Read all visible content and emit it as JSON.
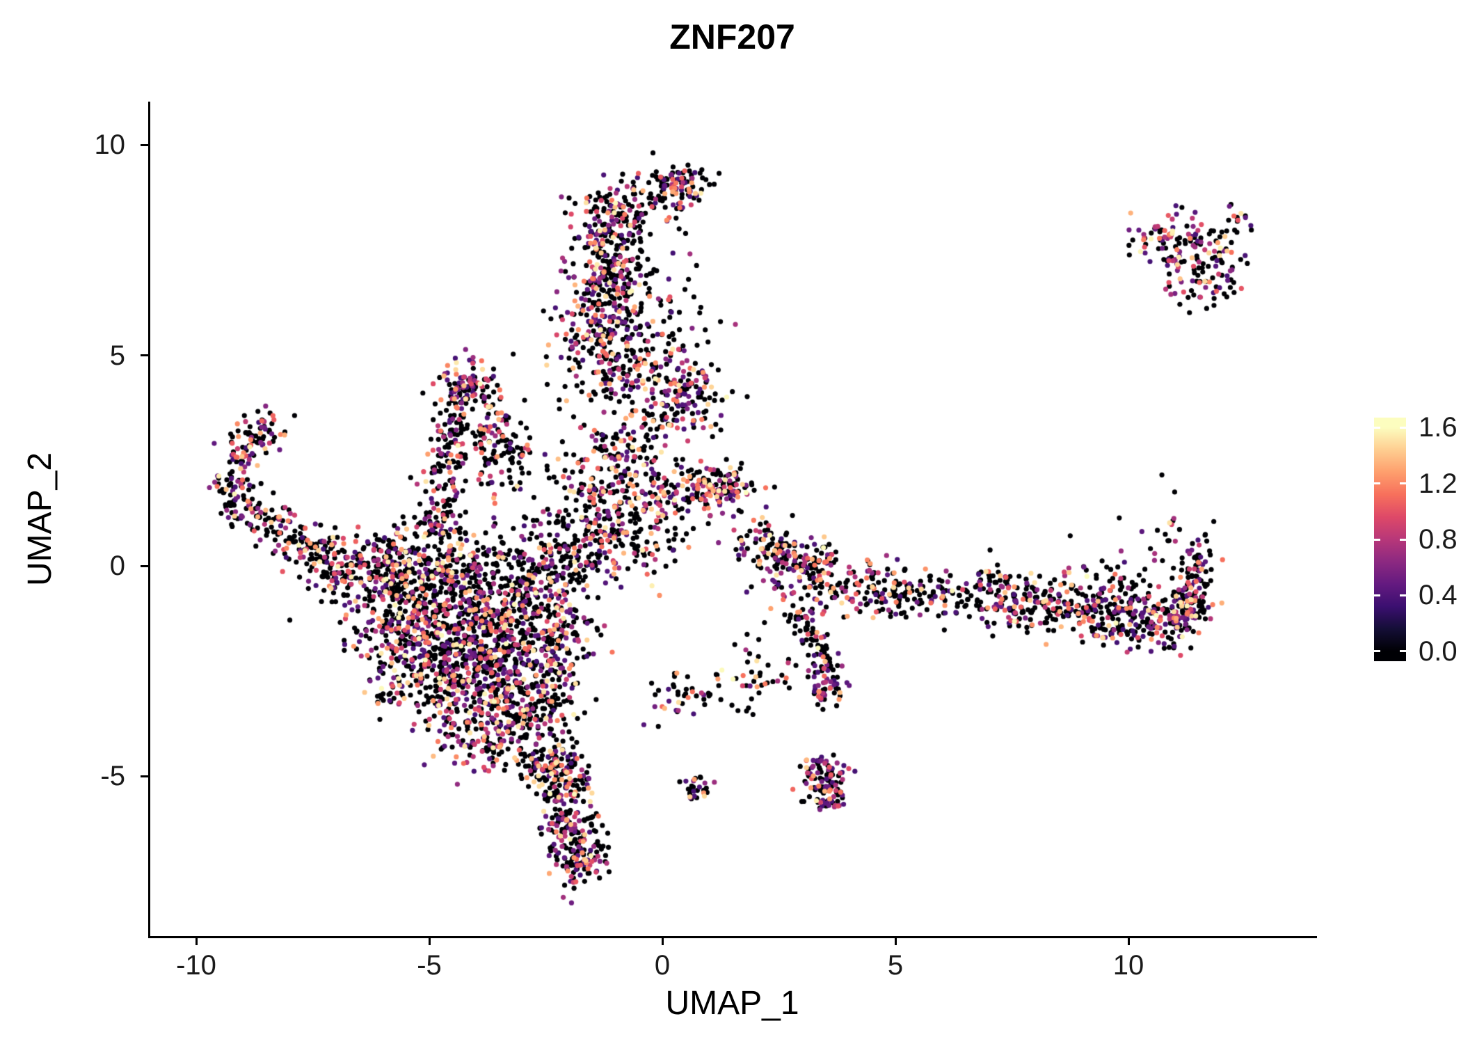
{
  "title": "ZNF207",
  "chart_data": {
    "type": "scatter",
    "title": "ZNF207",
    "xlabel": "UMAP_1",
    "ylabel": "UMAP_2",
    "xlim": [
      -11,
      14
    ],
    "ylim": [
      -8.8,
      11
    ],
    "x_ticks": [
      -10,
      -5,
      0,
      5,
      10
    ],
    "x_tick_labels": [
      "-10",
      "-5",
      "0",
      "5",
      "10"
    ],
    "y_ticks": [
      10,
      5,
      0,
      -5
    ],
    "y_tick_labels": [
      "10",
      "5",
      "0",
      "-5"
    ],
    "grid": false,
    "background": "#ffffff",
    "axis_color": "#000000",
    "point_radius_px": 3.6,
    "legend": {
      "position": "right",
      "orientation": "vertical",
      "min": 0.0,
      "max": 1.6,
      "tick_values": [
        1.6,
        1.2,
        0.8,
        0.4,
        0.0
      ],
      "tick_labels": [
        "1.6",
        "1.2",
        "0.8",
        "0.4",
        "0.0"
      ],
      "palette_name": "magma",
      "palette": [
        "#000004",
        "#140e36",
        "#3b0f70",
        "#641a80",
        "#8c2981",
        "#b73779",
        "#de4968",
        "#f7705c",
        "#fe9f6d",
        "#fece91",
        "#fcfdbf"
      ]
    },
    "value_model": {
      "comment": "most cells have zero expression (black); nonzero values mostly 0.5-1.0 (purple/magenta), some 1.1-1.4 (orange), rare ~1.6 (pale yellow)",
      "frac_zero_default": 0.6,
      "nonzero_min": 0.35,
      "nonzero_max": 1.6,
      "gamma": 1.6
    },
    "clusters": [
      {
        "kind": "blob",
        "x": 0.45,
        "y": 9.05,
        "sx": 0.3,
        "sy": 0.25,
        "n": 70,
        "p0": 0.55
      },
      {
        "kind": "blob",
        "x": -0.15,
        "y": 8.9,
        "sx": 0.35,
        "sy": 0.3,
        "n": 50
      },
      {
        "kind": "blob",
        "x": -0.95,
        "y": 8.35,
        "sx": 0.45,
        "sy": 0.35,
        "n": 120,
        "p0": 0.5
      },
      {
        "kind": "strand",
        "x1": -1.1,
        "y1": 8.0,
        "x2": -1.35,
        "y2": 6.4,
        "w": 0.35,
        "n": 150
      },
      {
        "kind": "blob",
        "x": -1.3,
        "y": 5.7,
        "sx": 0.5,
        "sy": 0.55,
        "n": 200,
        "p0": 0.5
      },
      {
        "kind": "blob",
        "x": -0.85,
        "y": 4.55,
        "sx": 0.45,
        "sy": 0.4,
        "n": 90
      },
      {
        "kind": "blob",
        "x": -0.4,
        "y": 6.6,
        "sx": 0.5,
        "sy": 0.9,
        "n": 70,
        "p0": 0.7
      },
      {
        "kind": "blob",
        "x": 0.1,
        "y": 5.3,
        "sx": 0.4,
        "sy": 0.4,
        "n": 22,
        "p0": 0.75
      },
      {
        "kind": "blob",
        "x": 0.9,
        "y": 5.8,
        "sx": 0.3,
        "sy": 0.4,
        "n": 8,
        "p0": 0.7
      },
      {
        "kind": "blob",
        "x": 11.1,
        "y": 7.6,
        "sx": 0.45,
        "sy": 0.4,
        "n": 70,
        "p0": 0.5
      },
      {
        "kind": "blob",
        "x": 11.6,
        "y": 6.9,
        "sx": 0.5,
        "sy": 0.4,
        "n": 70,
        "p0": 0.55
      },
      {
        "kind": "blob",
        "x": 10.7,
        "y": 7.9,
        "sx": 0.3,
        "sy": 0.25,
        "n": 30,
        "p0": 0.5
      },
      {
        "kind": "blob",
        "x": 12.3,
        "y": 8.35,
        "sx": 0.15,
        "sy": 0.12,
        "n": 10,
        "p0": 0.5
      },
      {
        "kind": "blob",
        "x": 12.0,
        "y": 7.6,
        "sx": 0.3,
        "sy": 0.3,
        "n": 20,
        "p0": 0.6
      },
      {
        "kind": "blob",
        "x": 0.55,
        "y": 4.1,
        "sx": 0.4,
        "sy": 0.45,
        "n": 130,
        "p0": 0.5
      },
      {
        "kind": "blob",
        "x": 0.9,
        "y": 1.85,
        "sx": 0.5,
        "sy": 0.3,
        "n": 140,
        "p0": 0.5
      },
      {
        "kind": "blob",
        "x": 1.45,
        "y": 1.85,
        "sx": 0.25,
        "sy": 0.2,
        "n": 30
      },
      {
        "kind": "blob",
        "x": -8.65,
        "y": 3.25,
        "sx": 0.3,
        "sy": 0.25,
        "n": 45,
        "p0": 0.5
      },
      {
        "kind": "strand",
        "x1": -8.75,
        "y1": 3.1,
        "x2": -9.35,
        "y2": 1.7,
        "w": 0.22,
        "n": 80,
        "p0": 0.5
      },
      {
        "kind": "strand",
        "x1": -9.3,
        "y1": 1.6,
        "x2": -8.1,
        "y2": 0.85,
        "w": 0.28,
        "n": 90
      },
      {
        "kind": "strand",
        "x1": -8.05,
        "y1": 0.8,
        "x2": -6.8,
        "y2": -0.3,
        "w": 0.3,
        "n": 110
      },
      {
        "kind": "blob",
        "x": -7.3,
        "y": 0.25,
        "sx": 0.3,
        "sy": 0.3,
        "n": 40
      },
      {
        "kind": "blob",
        "x": -4.25,
        "y": 4.4,
        "sx": 0.3,
        "sy": 0.25,
        "n": 70,
        "p0": 0.4
      },
      {
        "kind": "strand",
        "x1": -4.35,
        "y1": 4.2,
        "x2": -4.8,
        "y2": 1.4,
        "w": 0.22,
        "n": 120,
        "p0": 0.5
      },
      {
        "kind": "strand",
        "x1": -4.1,
        "y1": 4.2,
        "x2": -3.1,
        "y2": 2.55,
        "w": 0.25,
        "n": 80,
        "p0": 0.6
      },
      {
        "kind": "blob",
        "x": -3.8,
        "y": 2.9,
        "sx": 0.5,
        "sy": 0.5,
        "n": 60,
        "p0": 0.7
      },
      {
        "kind": "blob",
        "x": -3.3,
        "y": 2.2,
        "sx": 0.4,
        "sy": 0.3,
        "n": 30,
        "p0": 0.7
      },
      {
        "kind": "strand",
        "x1": -4.8,
        "y1": 1.35,
        "x2": -4.95,
        "y2": 0.8,
        "w": 0.25,
        "n": 30
      },
      {
        "kind": "blob",
        "x": -0.9,
        "y": 2.65,
        "sx": 0.5,
        "sy": 0.45,
        "n": 90
      },
      {
        "kind": "blob",
        "x": -1.15,
        "y": 1.6,
        "sx": 0.6,
        "sy": 0.5,
        "n": 140,
        "p0": 0.55
      },
      {
        "kind": "blob",
        "x": -0.75,
        "y": 0.6,
        "sx": 0.7,
        "sy": 0.5,
        "n": 120
      },
      {
        "kind": "blob",
        "x": -1.7,
        "y": 0.3,
        "sx": 0.5,
        "sy": 0.4,
        "n": 70
      },
      {
        "kind": "blob",
        "x": -0.1,
        "y": 1.5,
        "sx": 0.4,
        "sy": 0.6,
        "n": 40,
        "p0": 0.7
      },
      {
        "kind": "blob",
        "x": -0.3,
        "y": 3.3,
        "sx": 0.5,
        "sy": 0.4,
        "n": 40,
        "p0": 0.65
      },
      {
        "kind": "blob",
        "x": -2.3,
        "y": 4.3,
        "sx": 0.5,
        "sy": 0.5,
        "n": 15,
        "p0": 0.75
      },
      {
        "kind": "blob",
        "x": -2.5,
        "y": 1.1,
        "sx": 0.3,
        "sy": 0.3,
        "n": 12,
        "p0": 0.7
      },
      {
        "kind": "blob",
        "x": -5.3,
        "y": -0.55,
        "sx": 0.8,
        "sy": 0.55,
        "n": 240
      },
      {
        "kind": "blob",
        "x": -4.3,
        "y": -1.3,
        "sx": 0.9,
        "sy": 0.7,
        "n": 360,
        "p0": 0.58
      },
      {
        "kind": "blob",
        "x": -3.4,
        "y": -2.3,
        "sx": 0.75,
        "sy": 0.75,
        "n": 290,
        "p0": 0.58
      },
      {
        "kind": "blob",
        "x": -4.5,
        "y": -2.9,
        "sx": 0.75,
        "sy": 0.6,
        "n": 240
      },
      {
        "kind": "blob",
        "x": -5.5,
        "y": -1.8,
        "sx": 0.55,
        "sy": 0.55,
        "n": 150
      },
      {
        "kind": "blob",
        "x": -2.95,
        "y": -1.0,
        "sx": 0.55,
        "sy": 0.65,
        "n": 150
      },
      {
        "kind": "blob",
        "x": -2.55,
        "y": -0.1,
        "sx": 0.45,
        "sy": 0.45,
        "n": 90
      },
      {
        "kind": "blob",
        "x": -3.6,
        "y": -4.05,
        "sx": 0.55,
        "sy": 0.45,
        "n": 130,
        "p0": 0.55
      },
      {
        "kind": "blob",
        "x": -2.85,
        "y": -3.5,
        "sx": 0.45,
        "sy": 0.45,
        "n": 110
      },
      {
        "kind": "blob",
        "x": -6.3,
        "y": -0.3,
        "sx": 0.5,
        "sy": 0.45,
        "n": 80,
        "p0": 0.65
      },
      {
        "kind": "blob",
        "x": -6.0,
        "y": 0.3,
        "sx": 0.5,
        "sy": 0.35,
        "n": 50,
        "p0": 0.65
      },
      {
        "kind": "blob",
        "x": -4.9,
        "y": 0.3,
        "sx": 0.6,
        "sy": 0.4,
        "n": 90
      },
      {
        "kind": "blob",
        "x": -3.9,
        "y": 0.2,
        "sx": 0.6,
        "sy": 0.4,
        "n": 70,
        "p0": 0.65
      },
      {
        "kind": "blob",
        "x": -2.2,
        "y": -1.7,
        "sx": 0.35,
        "sy": 0.6,
        "n": 60
      },
      {
        "kind": "blob",
        "x": -2.35,
        "y": -2.6,
        "sx": 0.35,
        "sy": 0.5,
        "n": 60
      },
      {
        "kind": "strand",
        "x1": -2.55,
        "y1": -4.35,
        "x2": -2.05,
        "y2": -5.5,
        "w": 0.28,
        "n": 110,
        "p0": 0.55
      },
      {
        "kind": "blob",
        "x": -1.95,
        "y": -6.05,
        "sx": 0.32,
        "sy": 0.45,
        "n": 130,
        "p0": 0.5
      },
      {
        "kind": "blob",
        "x": -1.8,
        "y": -6.95,
        "sx": 0.28,
        "sy": 0.35,
        "n": 90,
        "p0": 0.5
      },
      {
        "kind": "blob",
        "x": -2.2,
        "y": -4.8,
        "sx": 0.3,
        "sy": 0.3,
        "n": 50
      },
      {
        "kind": "blob",
        "x": 2.1,
        "y": 0.55,
        "sx": 0.35,
        "sy": 0.3,
        "n": 60,
        "p0": 0.55
      },
      {
        "kind": "strand",
        "x1": 2.4,
        "y1": 0.35,
        "x2": 3.6,
        "y2": -0.15,
        "w": 0.3,
        "n": 110
      },
      {
        "kind": "blob",
        "x": 3.9,
        "y": -0.45,
        "sx": 0.4,
        "sy": 0.3,
        "n": 70,
        "p0": 0.55
      },
      {
        "kind": "strand",
        "x1": 4.3,
        "y1": -0.4,
        "x2": 6.3,
        "y2": -0.7,
        "w": 0.28,
        "n": 110,
        "p0": 0.65
      },
      {
        "kind": "strand",
        "x1": 6.3,
        "y1": -0.75,
        "x2": 9.0,
        "y2": -1.1,
        "w": 0.33,
        "n": 200
      },
      {
        "kind": "strand",
        "x1": 9.0,
        "y1": -1.1,
        "x2": 11.4,
        "y2": -1.25,
        "w": 0.38,
        "n": 280,
        "p0": 0.58
      },
      {
        "kind": "blob",
        "x": 11.35,
        "y": -0.7,
        "sx": 0.25,
        "sy": 0.4,
        "n": 80,
        "p0": 0.5
      },
      {
        "kind": "blob",
        "x": 11.45,
        "y": 0.2,
        "sx": 0.18,
        "sy": 0.4,
        "n": 40,
        "p0": 0.55
      },
      {
        "kind": "blob",
        "x": 10.7,
        "y": 0.9,
        "sx": 0.4,
        "sy": 0.35,
        "n": 20,
        "p0": 0.7
      },
      {
        "kind": "blob",
        "x": 9.6,
        "y": -0.35,
        "sx": 0.6,
        "sy": 0.3,
        "n": 40,
        "p0": 0.7
      },
      {
        "kind": "blob",
        "x": 7.3,
        "y": -0.45,
        "sx": 0.6,
        "sy": 0.3,
        "n": 30,
        "p0": 0.7
      },
      {
        "kind": "blob",
        "x": 5.1,
        "y": -0.9,
        "sx": 0.5,
        "sy": 0.3,
        "n": 25,
        "p0": 0.7
      },
      {
        "kind": "blob",
        "x": 2.6,
        "y": -0.4,
        "sx": 0.3,
        "sy": 0.35,
        "n": 35
      },
      {
        "kind": "strand",
        "x1": 2.95,
        "y1": -1.05,
        "x2": 3.45,
        "y2": -2.55,
        "w": 0.22,
        "n": 80
      },
      {
        "kind": "blob",
        "x": 3.5,
        "y": -2.95,
        "sx": 0.22,
        "sy": 0.25,
        "n": 45,
        "p0": 0.5
      },
      {
        "kind": "strand",
        "x1": 3.35,
        "y1": -4.55,
        "x2": 3.6,
        "y2": -5.75,
        "w": 0.22,
        "n": 120,
        "p0": 0.45
      },
      {
        "kind": "blob",
        "x": 0.72,
        "y": -5.25,
        "sx": 0.13,
        "sy": 0.16,
        "n": 28,
        "p0": 0.5
      },
      {
        "kind": "blob",
        "x": 1.1,
        "y": -3.1,
        "sx": 0.7,
        "sy": 0.3,
        "n": 40,
        "p0": 0.65
      },
      {
        "kind": "blob",
        "x": 0.2,
        "y": -3.3,
        "sx": 0.3,
        "sy": 0.3,
        "n": 18
      },
      {
        "kind": "blob",
        "x": 2.45,
        "y": -2.75,
        "sx": 0.3,
        "sy": 0.25,
        "n": 14
      },
      {
        "kind": "blob",
        "x": 1.95,
        "y": -2.0,
        "sx": 0.3,
        "sy": 0.5,
        "n": 12,
        "p0": 0.7
      }
    ]
  }
}
